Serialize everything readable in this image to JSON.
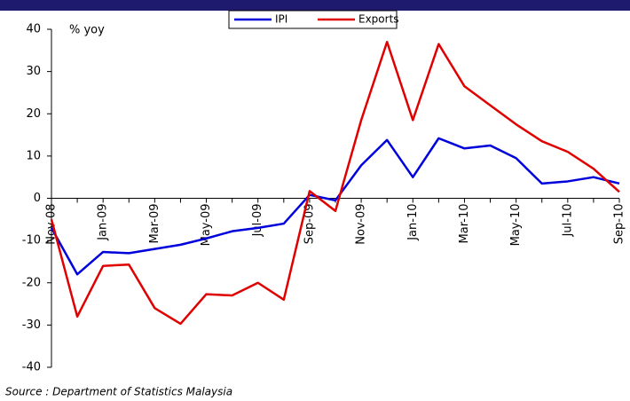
{
  "chart_data": {
    "type": "line",
    "y_label": "% yoy",
    "source": "Source : Department of Statistics Malaysia",
    "categories": [
      "Nov-08",
      null,
      "Jan-09",
      null,
      "Mar-09",
      null,
      "May-09",
      null,
      "Jul-09",
      null,
      "Sep-09",
      null,
      "Nov-09",
      null,
      "Jan-10",
      null,
      "Mar-10",
      null,
      "May-10",
      null,
      "Jul-10",
      null,
      "Sep-10"
    ],
    "series": [
      {
        "name": "IPI",
        "color": "#0000dd",
        "values": [
          -7,
          -18,
          -12.7,
          -13,
          -12,
          -11,
          -9.5,
          -7.8,
          -7,
          -6,
          0.8,
          -0.5,
          7.8,
          13.8,
          5,
          14.2,
          11.8,
          12.5,
          9.5,
          3.5,
          4,
          5,
          3.5
        ]
      },
      {
        "name": "Exports",
        "color": "#e00000",
        "values": [
          -5,
          -28,
          -16,
          -15.7,
          -26,
          -29.7,
          -22.7,
          -23,
          -20,
          -24,
          1.7,
          -3,
          18.5,
          37,
          18.5,
          36.5,
          26.5,
          22,
          17.5,
          13.5,
          11,
          7,
          1.5
        ]
      }
    ],
    "ylim": [
      -40,
      40
    ],
    "yticks": [
      -40,
      -30,
      -20,
      -10,
      0,
      10,
      20,
      30,
      40
    ]
  }
}
